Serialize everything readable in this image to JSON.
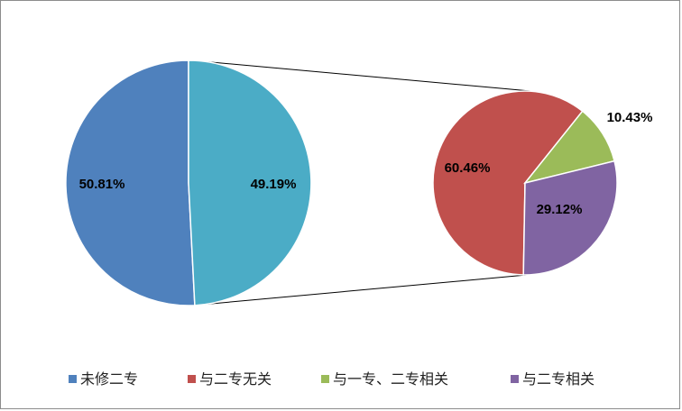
{
  "chart_data": {
    "type": "pie",
    "subtype": "pie-of-pie",
    "main_pie": {
      "slices": [
        {
          "name": "未修二专",
          "value": 50.81,
          "label": "50.81%",
          "color": "#4f81bd"
        },
        {
          "name": "",
          "value": 49.19,
          "label": "49.19%",
          "color": "#4bacc6"
        }
      ]
    },
    "secondary_pie": {
      "slices": [
        {
          "name": "与二专无关",
          "value": 60.46,
          "label": "60.46%",
          "color": "#c0504d"
        },
        {
          "name": "与一专、二专相关",
          "value": 10.43,
          "label": "10.43%",
          "color": "#9bbb59"
        },
        {
          "name": "与二专相关",
          "value": 29.12,
          "label": "29.12%",
          "color": "#8064a2"
        }
      ]
    },
    "legend": {
      "placement": "bottom",
      "entries": [
        {
          "label": "未修二专",
          "color": "#4f81bd"
        },
        {
          "label": "与二专无关",
          "color": "#c0504d"
        },
        {
          "label": "与一专、二专相关",
          "color": "#9bbb59"
        },
        {
          "label": "与二专相关",
          "color": "#8064a2"
        }
      ]
    }
  }
}
